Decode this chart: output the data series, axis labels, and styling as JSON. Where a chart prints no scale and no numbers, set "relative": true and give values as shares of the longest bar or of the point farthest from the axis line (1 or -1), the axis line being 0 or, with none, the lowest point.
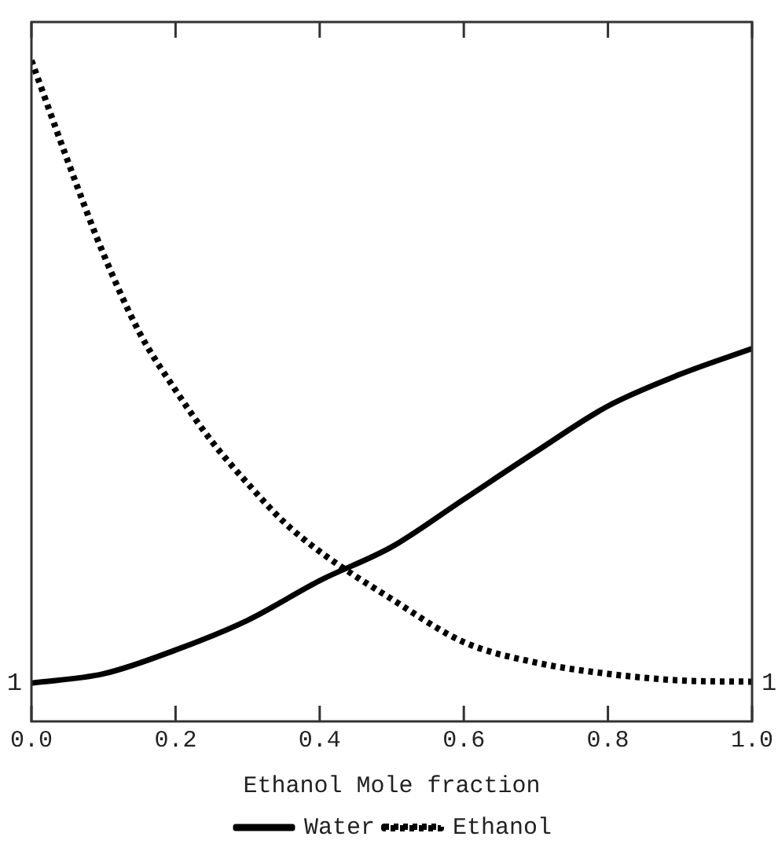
{
  "chart_data": {
    "type": "line",
    "relative": true,
    "xlabel": "Ethanol Mole fraction",
    "xlim": [
      0,
      1
    ],
    "xticks": [
      {
        "value": 0,
        "label": "0.0"
      },
      0.2,
      0.4,
      0.6,
      0.8,
      {
        "value": 1,
        "label": "1.0"
      }
    ],
    "legend": "bottom",
    "grid": false,
    "marker": "none",
    "annotations": [
      {
        "text": "1",
        "x": 0,
        "y": 0.058
      },
      {
        "text": "1",
        "x": 1,
        "y": 0.058
      }
    ],
    "series": [
      {
        "name": "Water",
        "color": "#000000",
        "line_style": "solid",
        "x": [
          0,
          0.1,
          0.2,
          0.3,
          0.4,
          0.5,
          0.6,
          0.7,
          0.8,
          0.9,
          1.0
        ],
        "values": [
          0.058,
          0.072,
          0.108,
          0.153,
          0.213,
          0.264,
          0.336,
          0.408,
          0.477,
          0.525,
          0.564
        ]
      },
      {
        "name": "Ethanol",
        "color": "#000000",
        "line_style": "dotted",
        "x": [
          0,
          0.05,
          0.1,
          0.15,
          0.2,
          0.25,
          0.3,
          0.35,
          0.4,
          0.5,
          0.6,
          0.7,
          0.8,
          0.9,
          1.0
        ],
        "values": [
          1,
          0.849,
          0.707,
          0.588,
          0.501,
          0.424,
          0.36,
          0.302,
          0.257,
          0.185,
          0.12,
          0.089,
          0.072,
          0.062,
          0.06
        ]
      }
    ]
  }
}
